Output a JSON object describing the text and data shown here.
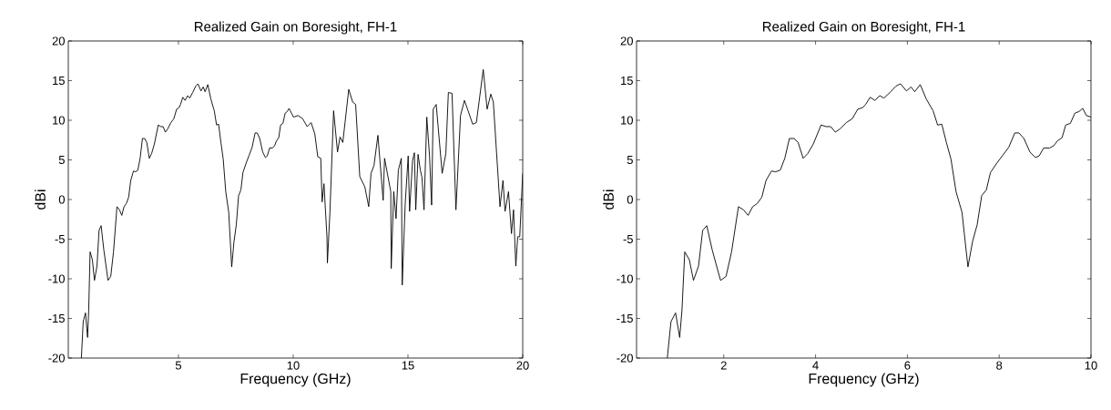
{
  "chart_data": [
    {
      "type": "line",
      "title": "Realized Gain on Boresight, FH-1",
      "xlabel": "Frequency (GHz)",
      "ylabel": "dBi",
      "xlim": [
        0.2,
        20
      ],
      "ylim": [
        -20,
        20
      ],
      "xticks": [
        5,
        10,
        15,
        20
      ],
      "yticks": [
        -20,
        -15,
        -10,
        -5,
        0,
        5,
        10,
        15,
        20
      ],
      "x": [
        0.77,
        0.85,
        0.95,
        1.04,
        1.09,
        1.15,
        1.25,
        1.34,
        1.45,
        1.54,
        1.63,
        1.75,
        1.93,
        2.05,
        2.17,
        2.32,
        2.43,
        2.53,
        2.63,
        2.73,
        2.83,
        2.92,
        3.04,
        3.13,
        3.23,
        3.33,
        3.43,
        3.53,
        3.62,
        3.73,
        3.83,
        3.95,
        4.12,
        4.23,
        4.33,
        4.43,
        4.53,
        4.67,
        4.8,
        4.92,
        5.03,
        5.09,
        5.19,
        5.29,
        5.4,
        5.49,
        5.62,
        5.75,
        5.85,
        5.98,
        6.08,
        6.16,
        6.28,
        6.41,
        6.56,
        6.66,
        6.75,
        6.85,
        6.95,
        7.06,
        7.19,
        7.32,
        7.42,
        7.52,
        7.62,
        7.72,
        7.81,
        7.95,
        8.08,
        8.21,
        8.34,
        8.43,
        8.54,
        8.67,
        8.79,
        8.87,
        8.97,
        9.1,
        9.19,
        9.27,
        9.37,
        9.45,
        9.55,
        9.65,
        9.74,
        9.82,
        10.01,
        10.21,
        10.41,
        10.61,
        10.78,
        10.94,
        11.07,
        11.2,
        11.26,
        11.34,
        11.47,
        11.49,
        11.6,
        11.76,
        11.93,
        12.04,
        12.16,
        12.42,
        12.59,
        12.72,
        12.9,
        13.12,
        13.29,
        13.39,
        13.52,
        13.69,
        13.92,
        13.98,
        14.25,
        14.27,
        14.38,
        14.48,
        14.58,
        14.71,
        14.75,
        14.88,
        15.01,
        15.07,
        15.2,
        15.28,
        15.34,
        15.44,
        15.54,
        15.61,
        15.7,
        15.82,
        15.94,
        16.03,
        16.1,
        16.23,
        16.49,
        16.65,
        16.76,
        16.92,
        17.09,
        17.29,
        17.46,
        17.62,
        17.82,
        17.98,
        18.28,
        18.45,
        18.61,
        18.72,
        19.01,
        19.14,
        19.23,
        19.38,
        19.51,
        19.6,
        19.7,
        19.78,
        19.87,
        20.0
      ],
      "series": [
        {
          "color": "#000000",
          "values": [
            -20,
            -15.4,
            -14.3,
            -17.4,
            -13.9,
            -6.6,
            -7.6,
            -10.2,
            -8.4,
            -3.9,
            -3.3,
            -6.4,
            -10.2,
            -9.7,
            -6.6,
            -0.9,
            -1.3,
            -2.0,
            -0.9,
            -0.5,
            0.3,
            2.4,
            3.6,
            3.5,
            3.7,
            5.2,
            7.7,
            7.7,
            7.2,
            5.2,
            5.8,
            7.0,
            9.4,
            9.2,
            9.2,
            8.5,
            8.9,
            9.7,
            10.2,
            11.4,
            11.6,
            12.0,
            12.9,
            12.5,
            13.1,
            12.8,
            13.5,
            14.3,
            14.6,
            13.7,
            14.2,
            13.6,
            14.5,
            12.7,
            11.2,
            9.4,
            9.5,
            7.2,
            5.1,
            1.0,
            -1.6,
            -8.5,
            -5.3,
            -3.2,
            0.5,
            1.2,
            3.4,
            4.6,
            5.6,
            6.6,
            8.4,
            8.4,
            7.7,
            6.0,
            5.3,
            5.5,
            6.5,
            6.5,
            6.8,
            7.4,
            7.8,
            9.4,
            9.6,
            10.9,
            11.1,
            11.5,
            10.4,
            10.6,
            10.2,
            9.2,
            9.7,
            8.3,
            5.4,
            5.2,
            -0.3,
            2.0,
            -4.7,
            -8.0,
            -1.6,
            11.2,
            6.0,
            7.9,
            7.2,
            13.9,
            12.3,
            12.0,
            2.9,
            1.6,
            -0.9,
            3.3,
            4.3,
            8.1,
            -0.1,
            5.2,
            1.0,
            -8.7,
            1.0,
            -2.4,
            3.7,
            5.2,
            -10.8,
            -0.5,
            5.5,
            -1.5,
            4.9,
            5.9,
            -1.3,
            5.7,
            3.7,
            2.8,
            -1.3,
            10.4,
            5.5,
            -0.7,
            11.4,
            12.0,
            3.3,
            5.8,
            13.5,
            13.4,
            -1.3,
            10.6,
            12.5,
            11.2,
            9.5,
            9.7,
            16.4,
            11.4,
            13.3,
            12.3,
            -0.9,
            2.4,
            -1.5,
            1.0,
            -4.3,
            -1.3,
            -8.4,
            -4.7,
            -4.7,
            3.3
          ]
        }
      ]
    },
    {
      "type": "line",
      "title": "Realized Gain on Boresight, FH-1",
      "xlabel": "Frequency (GHz)",
      "ylabel": "dBi",
      "xlim": [
        0.1,
        10
      ],
      "ylim": [
        -20,
        20
      ],
      "xticks": [
        2,
        4,
        6,
        8,
        10
      ],
      "yticks": [
        -20,
        -15,
        -10,
        -5,
        0,
        5,
        10,
        15,
        20
      ],
      "x": [
        0.77,
        0.85,
        0.95,
        1.04,
        1.09,
        1.15,
        1.25,
        1.34,
        1.45,
        1.54,
        1.63,
        1.75,
        1.93,
        2.05,
        2.17,
        2.32,
        2.43,
        2.53,
        2.63,
        2.73,
        2.83,
        2.92,
        3.04,
        3.13,
        3.23,
        3.33,
        3.43,
        3.53,
        3.62,
        3.73,
        3.83,
        3.95,
        4.12,
        4.23,
        4.33,
        4.43,
        4.53,
        4.67,
        4.8,
        4.92,
        5.03,
        5.09,
        5.19,
        5.29,
        5.4,
        5.49,
        5.62,
        5.75,
        5.85,
        5.98,
        6.08,
        6.16,
        6.28,
        6.41,
        6.56,
        6.66,
        6.75,
        6.85,
        6.95,
        7.06,
        7.19,
        7.32,
        7.42,
        7.52,
        7.62,
        7.72,
        7.81,
        7.95,
        8.08,
        8.21,
        8.34,
        8.43,
        8.54,
        8.67,
        8.79,
        8.87,
        8.97,
        9.1,
        9.19,
        9.27,
        9.37,
        9.45,
        9.55,
        9.65,
        9.74,
        9.82,
        9.9,
        10.0
      ],
      "series": [
        {
          "color": "#000000",
          "values": [
            -20,
            -15.4,
            -14.3,
            -17.4,
            -13.9,
            -6.6,
            -7.6,
            -10.2,
            -8.4,
            -3.9,
            -3.3,
            -6.4,
            -10.2,
            -9.7,
            -6.6,
            -0.9,
            -1.3,
            -2.0,
            -0.9,
            -0.5,
            0.3,
            2.4,
            3.6,
            3.5,
            3.7,
            5.2,
            7.7,
            7.7,
            7.2,
            5.2,
            5.8,
            7.0,
            9.4,
            9.2,
            9.2,
            8.5,
            8.9,
            9.7,
            10.2,
            11.4,
            11.6,
            12.0,
            12.9,
            12.5,
            13.1,
            12.8,
            13.5,
            14.3,
            14.6,
            13.7,
            14.2,
            13.6,
            14.5,
            12.7,
            11.2,
            9.4,
            9.5,
            7.2,
            5.1,
            1.0,
            -1.6,
            -8.5,
            -5.3,
            -3.2,
            0.5,
            1.2,
            3.4,
            4.6,
            5.6,
            6.6,
            8.4,
            8.4,
            7.7,
            6.0,
            5.3,
            5.5,
            6.5,
            6.5,
            6.8,
            7.4,
            7.8,
            9.4,
            9.6,
            10.9,
            11.1,
            11.5,
            10.6,
            10.4
          ]
        }
      ]
    }
  ]
}
